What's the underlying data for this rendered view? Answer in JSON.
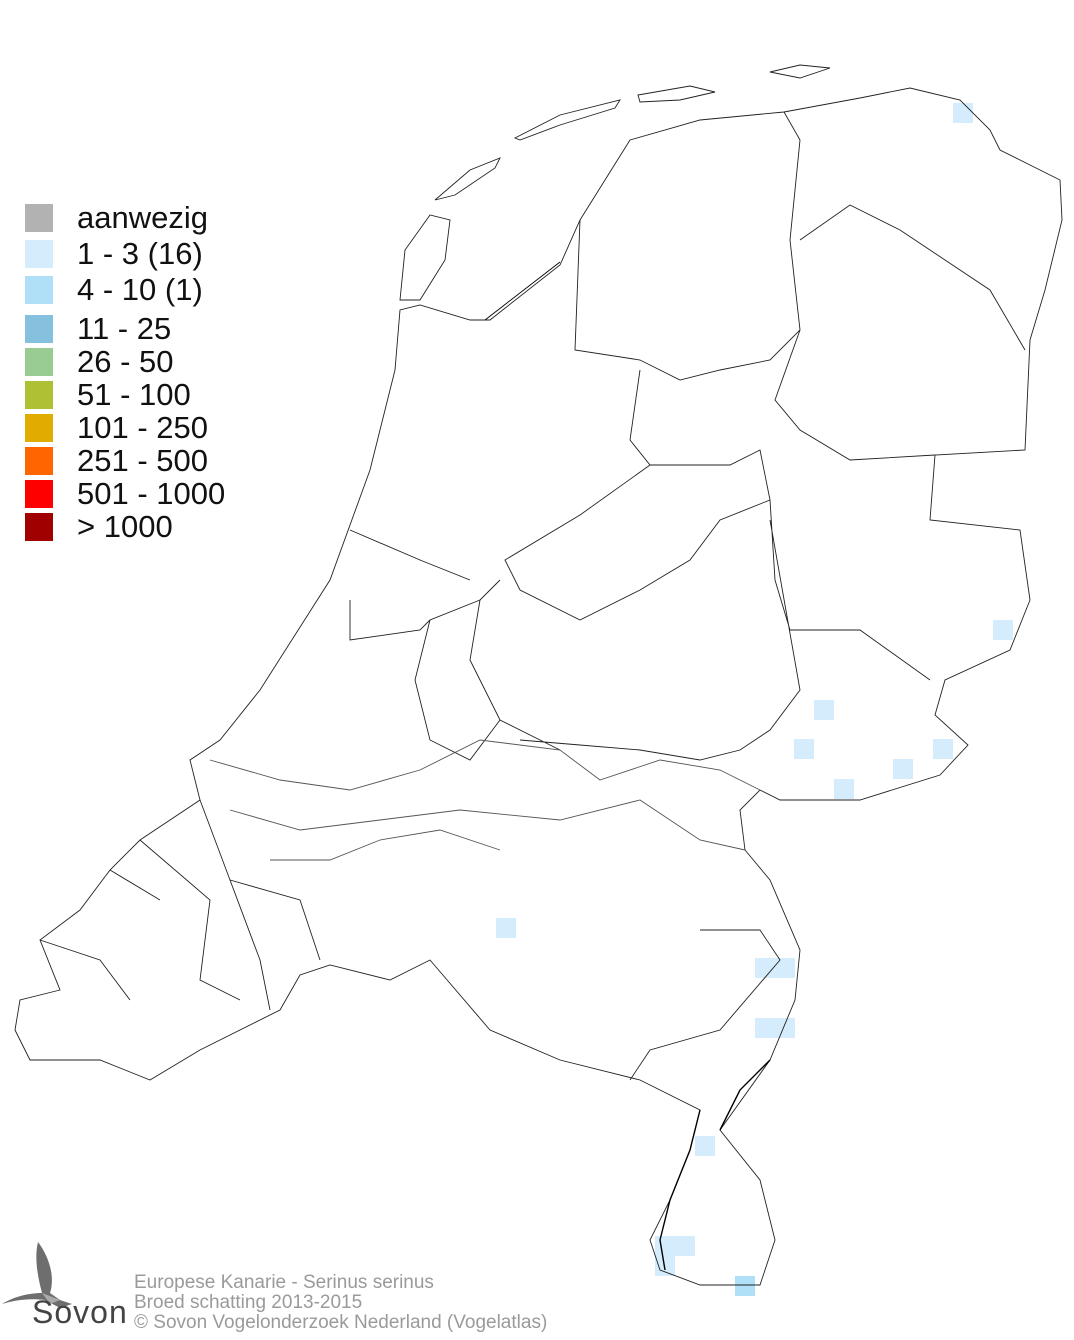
{
  "legend": {
    "items": [
      {
        "label": "aanwezig",
        "color": "#b2b2b2"
      },
      {
        "label": "1 - 3 (16)",
        "color": "#d4ecfb"
      },
      {
        "label": "4 - 10 (1)",
        "color": "#b0e0f8"
      },
      {
        "label": "11 - 25",
        "color": "#85c0de"
      },
      {
        "label": "26 - 50",
        "color": "#98cc92"
      },
      {
        "label": "51 - 100",
        "color": "#b0c034"
      },
      {
        "label": "101 - 250",
        "color": "#e1ac00"
      },
      {
        "label": "251 - 500",
        "color": "#ff6600"
      },
      {
        "label": "501 - 1000",
        "color": "#ff0000"
      },
      {
        "label": "> 1000",
        "color": "#a00000"
      }
    ]
  },
  "footer": {
    "line1": "Europese Kanarie - Serinus serinus",
    "line2": "Broed schatting 2013-2015",
    "line3": "© Sovon Vogelonderzoek Nederland (Vogelatlas)"
  },
  "logo": {
    "text": "Sovon"
  }
}
